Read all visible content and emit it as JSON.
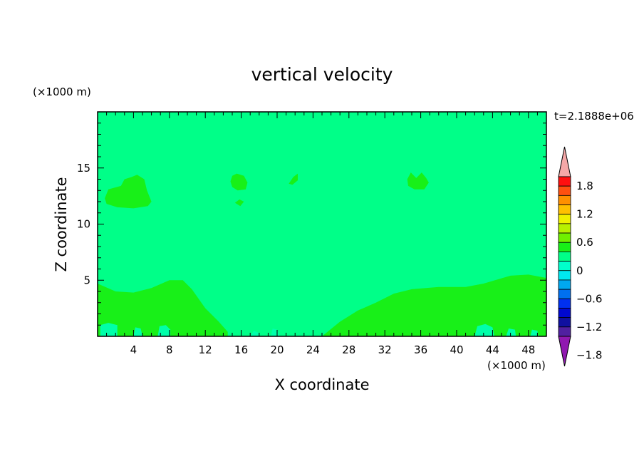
{
  "chart_data": {
    "type": "heatmap",
    "title": "vertical velocity",
    "xlabel": "X coordinate",
    "ylabel": "Z coordinate",
    "x_unit": "(×1000 m)",
    "y_unit": "(×1000 m)",
    "time_label": "t=2.1888e+06",
    "xlim": [
      0,
      50
    ],
    "ylim": [
      0,
      20
    ],
    "x_ticks": [
      4,
      8,
      12,
      16,
      20,
      24,
      28,
      32,
      36,
      40,
      44,
      48
    ],
    "y_ticks": [
      5,
      10,
      15
    ],
    "background_value": 0,
    "background_color": "#00ff88",
    "regions": [
      {
        "value": 0.1,
        "color": "#18f018",
        "points": [
          [
            0,
            4.7
          ],
          [
            2,
            4.0
          ],
          [
            4,
            3.9
          ],
          [
            6,
            4.3
          ],
          [
            8,
            5.0
          ],
          [
            9.5,
            5.0
          ],
          [
            10.5,
            4.2
          ],
          [
            12,
            2.5
          ],
          [
            13.5,
            1.3
          ],
          [
            14.5,
            0.4
          ],
          [
            14.5,
            0
          ],
          [
            0,
            0
          ]
        ]
      },
      {
        "value": 0.1,
        "color": "#18f018",
        "points": [
          [
            25,
            0
          ],
          [
            27,
            1.3
          ],
          [
            29,
            2.3
          ],
          [
            31,
            3.0
          ],
          [
            33,
            3.8
          ],
          [
            35,
            4.2
          ],
          [
            38,
            4.4
          ],
          [
            41,
            4.4
          ],
          [
            43,
            4.7
          ],
          [
            46,
            5.4
          ],
          [
            48,
            5.5
          ],
          [
            50,
            5.2
          ],
          [
            50,
            0
          ]
        ]
      },
      {
        "value": 0.1,
        "color": "#18f018",
        "points": [
          [
            0.8,
            12.3
          ],
          [
            1.2,
            13.1
          ],
          [
            2.6,
            13.4
          ],
          [
            3.0,
            14.0
          ],
          [
            3.8,
            14.2
          ],
          [
            4.4,
            14.4
          ],
          [
            5.2,
            14.0
          ],
          [
            5.5,
            13.0
          ],
          [
            6.0,
            12.0
          ],
          [
            5.6,
            11.6
          ],
          [
            4.0,
            11.4
          ],
          [
            2.2,
            11.5
          ],
          [
            1.0,
            11.8
          ]
        ]
      },
      {
        "value": 0.1,
        "color": "#18f018",
        "points": [
          [
            14.8,
            13.8
          ],
          [
            15.0,
            14.3
          ],
          [
            15.5,
            14.5
          ],
          [
            16.3,
            14.3
          ],
          [
            16.7,
            13.7
          ],
          [
            16.5,
            13.1
          ],
          [
            15.6,
            13.0
          ],
          [
            15.0,
            13.3
          ]
        ]
      },
      {
        "value": 0.1,
        "color": "#18f018",
        "points": [
          [
            15.3,
            11.9
          ],
          [
            15.8,
            12.2
          ],
          [
            16.3,
            12.0
          ],
          [
            15.9,
            11.6
          ]
        ]
      },
      {
        "value": 0.1,
        "color": "#18f018",
        "points": [
          [
            21.3,
            13.6
          ],
          [
            21.8,
            14.2
          ],
          [
            22.3,
            14.5
          ],
          [
            22.3,
            13.9
          ],
          [
            21.7,
            13.5
          ]
        ]
      },
      {
        "value": 0.1,
        "color": "#18f018",
        "points": [
          [
            34.5,
            14.0
          ],
          [
            34.9,
            14.6
          ],
          [
            35.5,
            14.1
          ],
          [
            36.1,
            14.6
          ],
          [
            36.6,
            14.1
          ],
          [
            36.9,
            13.7
          ],
          [
            36.4,
            13.1
          ],
          [
            35.3,
            13.1
          ],
          [
            34.6,
            13.4
          ]
        ]
      },
      {
        "value": -0.1,
        "color": "#00ffaa",
        "points": [
          [
            0.3,
            0
          ],
          [
            0.3,
            1.0
          ],
          [
            1.2,
            1.2
          ],
          [
            2.2,
            1.0
          ],
          [
            2.2,
            0
          ]
        ]
      },
      {
        "value": -0.1,
        "color": "#00ffaa",
        "points": [
          [
            4.0,
            0
          ],
          [
            4.2,
            0.8
          ],
          [
            4.8,
            0.7
          ],
          [
            5.0,
            0
          ]
        ]
      },
      {
        "value": -0.1,
        "color": "#00ffaa",
        "points": [
          [
            6.7,
            0
          ],
          [
            6.9,
            0.9
          ],
          [
            7.6,
            1.0
          ],
          [
            8.1,
            0.6
          ],
          [
            8.1,
            0
          ]
        ]
      },
      {
        "value": -0.1,
        "color": "#00ffaa",
        "points": [
          [
            17.0,
            0
          ],
          [
            17.4,
            0.5
          ],
          [
            18.0,
            0.3
          ],
          [
            18.0,
            0
          ]
        ]
      },
      {
        "value": -0.1,
        "color": "#00ffaa",
        "points": [
          [
            19.3,
            0
          ],
          [
            19.5,
            0.7
          ],
          [
            20.0,
            0.6
          ],
          [
            20.3,
            0
          ]
        ]
      },
      {
        "value": -0.1,
        "color": "#00ffaa",
        "points": [
          [
            42.0,
            0
          ],
          [
            42.3,
            0.9
          ],
          [
            43.2,
            1.1
          ],
          [
            44.0,
            0.8
          ],
          [
            44.2,
            0
          ]
        ]
      },
      {
        "value": -0.1,
        "color": "#00ffaa",
        "points": [
          [
            45.5,
            0
          ],
          [
            45.8,
            0.7
          ],
          [
            46.5,
            0.6
          ],
          [
            46.6,
            0
          ]
        ]
      },
      {
        "value": -0.1,
        "color": "#00ffaa",
        "points": [
          [
            48.2,
            0
          ],
          [
            48.4,
            0.6
          ],
          [
            49.0,
            0.5
          ],
          [
            49.1,
            0
          ]
        ]
      }
    ],
    "colorbar": {
      "labels": [
        "1.8",
        "1.2",
        "0.6",
        "0",
        "−0.6",
        "−1.2",
        "−1.8"
      ],
      "colors": [
        "#f5a8a8",
        "#ff1010",
        "#ff5010",
        "#ff9000",
        "#ffc000",
        "#f0f000",
        "#b8f000",
        "#70f000",
        "#18f018",
        "#00ff88",
        "#00ffcc",
        "#00e8f0",
        "#00a8f0",
        "#0070f0",
        "#0030f0",
        "#0008d0",
        "#1010a0",
        "#5020a0",
        "#9018b0"
      ]
    }
  }
}
